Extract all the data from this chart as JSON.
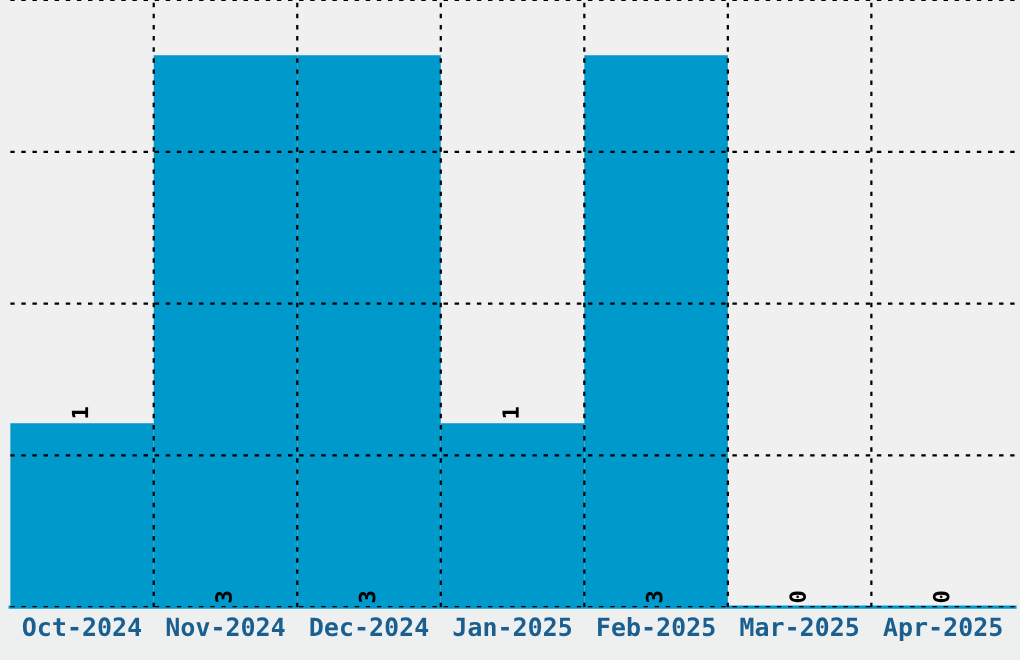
{
  "chart_data": {
    "type": "bar",
    "categories": [
      "Oct-2024",
      "Nov-2024",
      "Dec-2024",
      "Jan-2025",
      "Feb-2025",
      "Mar-2025",
      "Apr-2025"
    ],
    "values": [
      1,
      3,
      3,
      1,
      3,
      0,
      0
    ],
    "color": "#0099cc",
    "ylim": [
      0,
      3.3
    ],
    "yticks": [
      {
        "value": 0,
        "label": null
      },
      {
        "value": 0.825,
        "label": null
      },
      {
        "value": 1.65,
        "label": null
      },
      {
        "value": 2.475,
        "label": null
      },
      {
        "value": 3.3,
        "label": null
      }
    ],
    "tick_labels": "x",
    "grid": true,
    "data_labels": true
  }
}
